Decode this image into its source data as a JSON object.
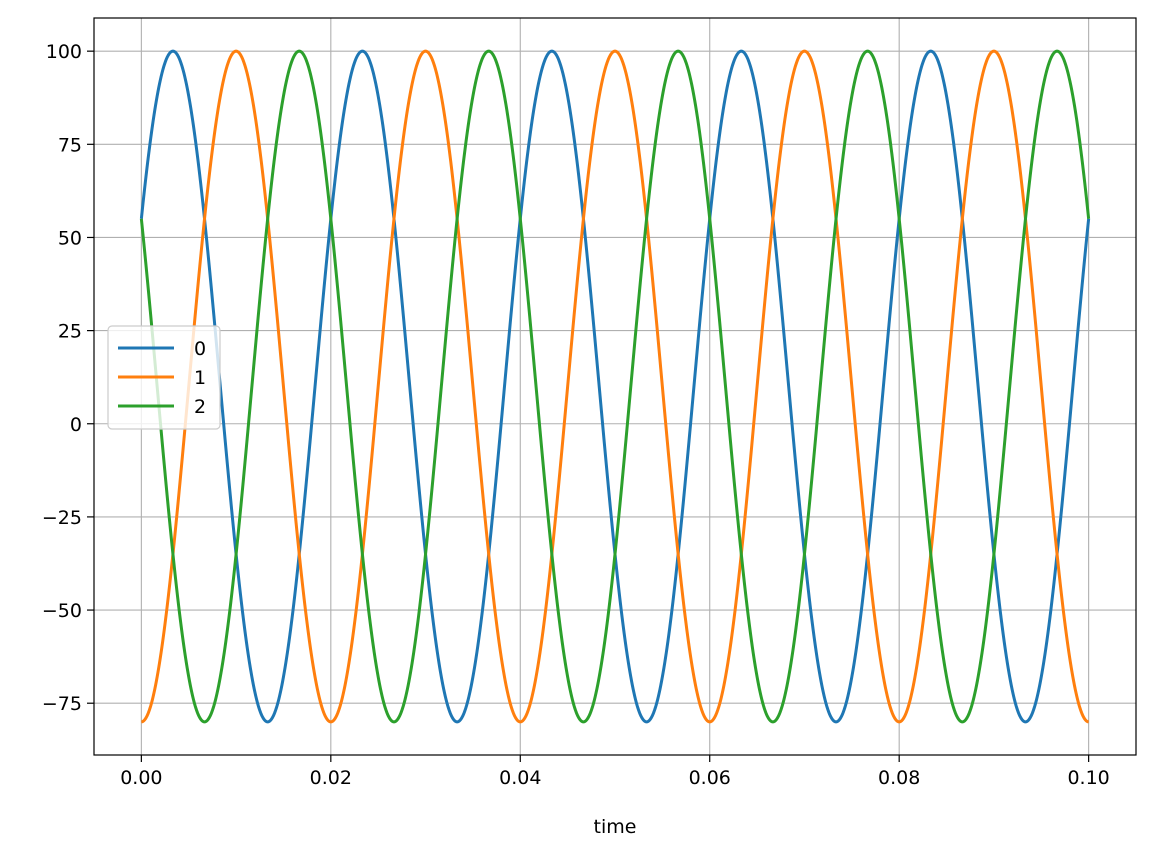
{
  "chart_data": {
    "type": "line",
    "title": "",
    "xlabel": "time",
    "ylabel": "",
    "xlim": [
      -0.005,
      0.105
    ],
    "ylim": [
      -88.9,
      108.9
    ],
    "x_ticks": [
      0.0,
      0.02,
      0.04,
      0.06,
      0.08,
      0.1
    ],
    "x_tick_labels": [
      "0.00",
      "0.02",
      "0.04",
      "0.06",
      "0.08",
      "0.10"
    ],
    "y_ticks": [
      100,
      75,
      50,
      25,
      0,
      -25,
      -50,
      -75
    ],
    "y_tick_labels": [
      "100",
      "75",
      "50",
      "25",
      "0",
      "−25",
      "−50",
      "−75"
    ],
    "grid": true,
    "legend_position": "center-left",
    "series_model": "sinusoid: y = offset + amplitude * sin(2*pi*frequency*t + phase)",
    "x_start": 0.0,
    "x_end": 0.1,
    "series": [
      {
        "name": "0",
        "color": "#1f77b4",
        "amplitude": 90,
        "offset": 10,
        "frequency": 50,
        "phase_deg": 30
      },
      {
        "name": "1",
        "color": "#ff7f0e",
        "amplitude": 90,
        "offset": 10,
        "frequency": 50,
        "phase_deg": -90
      },
      {
        "name": "2",
        "color": "#2ca02c",
        "amplitude": 90,
        "offset": 10,
        "frequency": 50,
        "phase_deg": 150
      }
    ]
  }
}
